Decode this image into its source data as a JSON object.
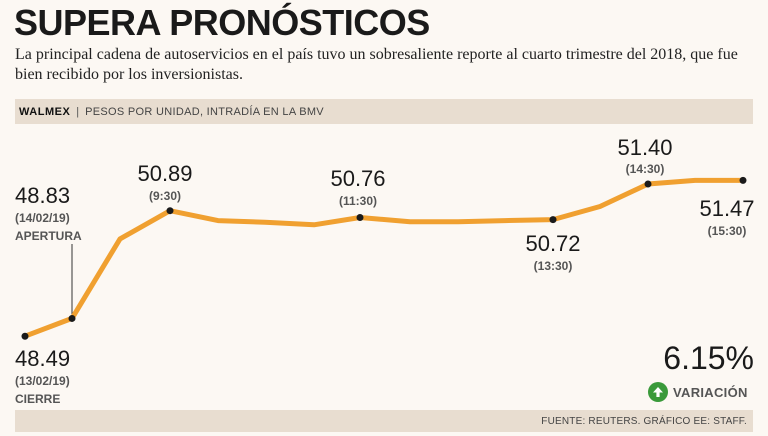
{
  "header": {
    "title": "SUPERA PRONÓSTICOS",
    "subtitle": "La principal cadena de autoservicios en el país tuvo un sobresaliente reporte al cuarto trimestre del 2018, que fue bien recibido por los inversionistas."
  },
  "bar": {
    "ticker": "WALMEX",
    "separator": "|",
    "description": "PESOS POR UNIDAD, INTRADÍA EN LA BMV"
  },
  "chart_data": {
    "type": "line",
    "color": "#f0a030",
    "series": [
      {
        "values": [
          48.49,
          48.83,
          50.35,
          50.89,
          50.7,
          50.67,
          50.62,
          50.76,
          50.68,
          50.68,
          50.7,
          50.72,
          50.97,
          51.4,
          51.47,
          51.47
        ]
      }
    ],
    "labeled_points": [
      {
        "index": 0,
        "value": "48.49",
        "time": "(13/02/19)",
        "tag": "CIERRE"
      },
      {
        "index": 1,
        "value": "48.83",
        "time": "(14/02/19)",
        "tag": "APERTURA"
      },
      {
        "index": 3,
        "value": "50.89",
        "time": "(9:30)"
      },
      {
        "index": 7,
        "value": "50.76",
        "time": "(11:30)"
      },
      {
        "index": 11,
        "value": "50.72",
        "time": "(13:30)"
      },
      {
        "index": 13,
        "value": "51.40",
        "time": "(14:30)"
      },
      {
        "index": 15,
        "value": "51.47",
        "time": "(15:30)"
      }
    ]
  },
  "variation": {
    "value": "6.15%",
    "label": "VARIACIÓN",
    "icon": "arrow-up-circle-icon",
    "icon_color": "#3a9a3a"
  },
  "footer": {
    "source": "FUENTE: REUTERS. GRÁFICO EE: STAFF."
  }
}
